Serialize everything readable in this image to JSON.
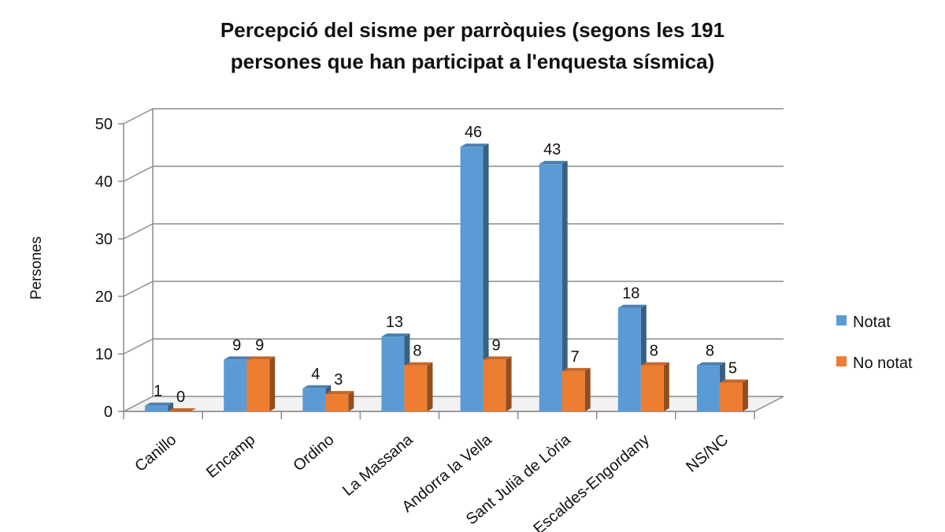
{
  "chart_data": {
    "type": "bar",
    "title_lines": [
      "Percepció del sisme per parròquies (segons les 191",
      "persones que han participat a l'enquesta sísmica)"
    ],
    "xlabel": "",
    "ylabel": "Persones",
    "ylim": [
      0,
      50
    ],
    "yticks": [
      "0",
      "10",
      "20",
      "30",
      "40",
      "50"
    ],
    "grid": true,
    "legend_position": "right",
    "categories": [
      "Canillo",
      "Encamp",
      "Ordino",
      "La Massana",
      "Andorra la Vella",
      "Sant Julià de Lòria",
      "Escaldes-Engordany",
      "NS/NC"
    ],
    "series": [
      {
        "name": "Notat",
        "values": [
          1,
          9,
          4,
          13,
          46,
          43,
          18,
          8
        ],
        "color": "#5b9bd5"
      },
      {
        "name": "No notat",
        "values": [
          0,
          9,
          3,
          8,
          9,
          7,
          8,
          5
        ],
        "color": "#ed7d31"
      }
    ],
    "data_labels": [
      [
        "1",
        "9",
        "4",
        "13",
        "46",
        "43",
        "18",
        "8"
      ],
      [
        "0",
        "9",
        "3",
        "8",
        "9",
        "7",
        "8",
        "5"
      ]
    ]
  }
}
